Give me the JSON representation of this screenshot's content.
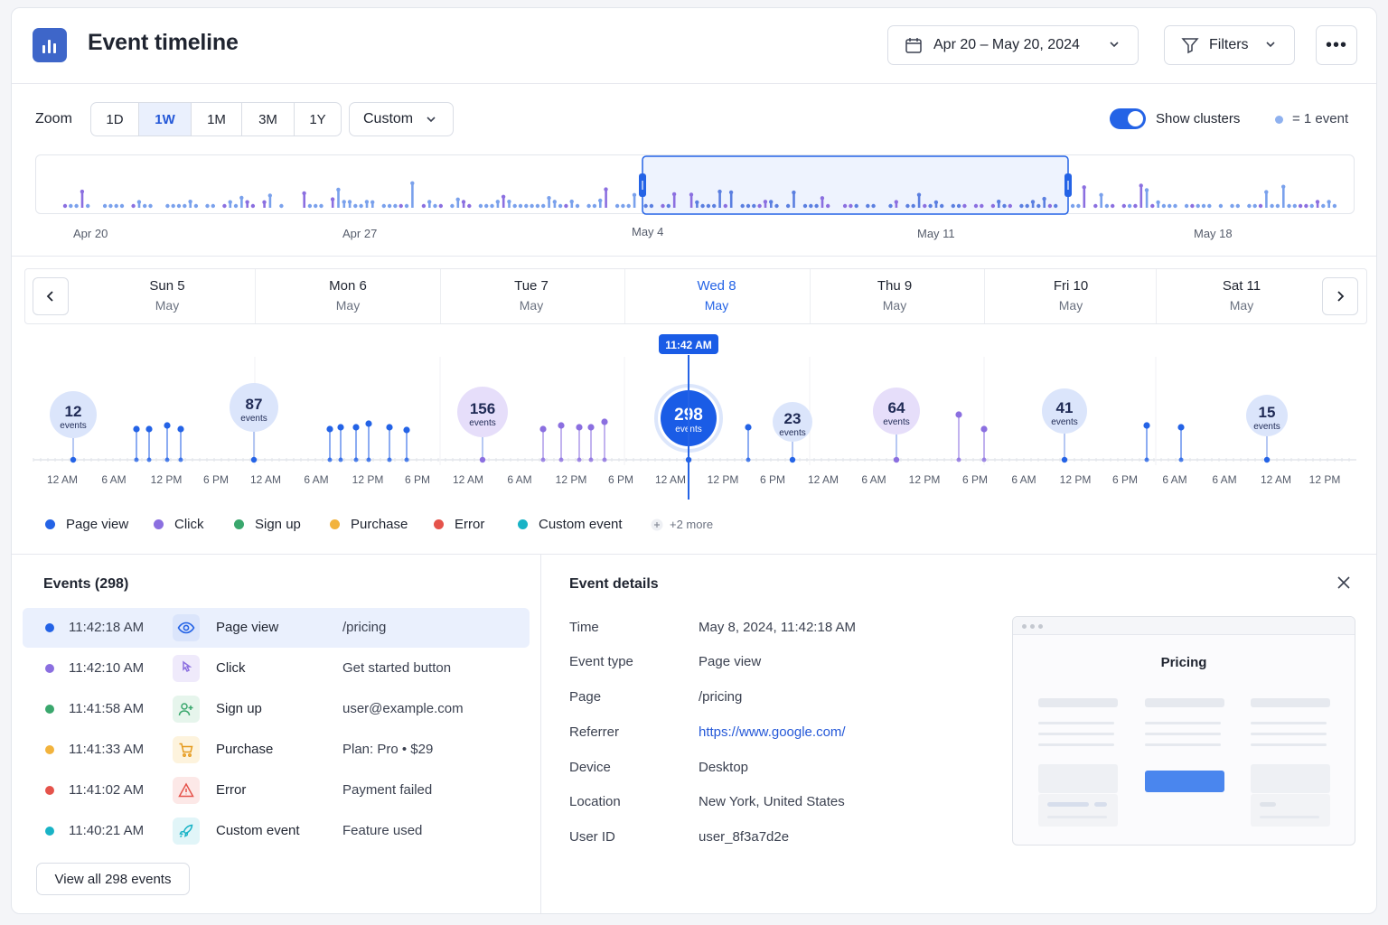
{
  "header": {
    "title": "Event timeline",
    "date_range": "Apr 20 – May 20, 2024",
    "filters_label": "Filters",
    "more_label": "•••"
  },
  "zoom": {
    "label": "Zoom",
    "options": [
      "1D",
      "1W",
      "1M",
      "3M",
      "1Y"
    ],
    "active": "1W",
    "custom_label": "Custom",
    "show_clusters_label": "Show clusters",
    "show_clusters_on": true,
    "event_key_label": "= 1 event"
  },
  "overview": {
    "axis_labels": [
      "Apr 20",
      "Apr 27",
      "May 4",
      "May 11",
      "May 18"
    ],
    "selection": "May 4 – May 11"
  },
  "days": [
    {
      "day": "Sun 5",
      "month": "May"
    },
    {
      "day": "Mon 6",
      "month": "May"
    },
    {
      "day": "Tue 7",
      "month": "May"
    },
    {
      "day": "Wed 8",
      "month": "May",
      "selected": true
    },
    {
      "day": "Thu 9",
      "month": "May"
    },
    {
      "day": "Fri 10",
      "month": "May"
    },
    {
      "day": "Sat 11",
      "month": "May"
    }
  ],
  "timeline": {
    "cursor_time": "11:42 AM",
    "tick_labels": [
      "12 AM",
      "6 AM",
      "12 PM",
      "6 PM",
      "12 AM",
      "6 AM",
      "12 PM",
      "6 PM",
      "12 AM",
      "6 AM",
      "12 PM",
      "6 PM",
      "12 AM",
      "12 PM",
      "6 PM",
      "12 AM",
      "6 AM",
      "12 PM",
      "6 PM",
      "6 AM",
      "12 PM",
      "6 PM",
      "6 AM",
      "6 AM",
      "12 AM",
      "12 PM",
      "6 PM"
    ],
    "clusters": [
      {
        "count": "12",
        "label": "events"
      },
      {
        "count": "87",
        "label": "events"
      },
      {
        "count": "156",
        "label": "events"
      },
      {
        "count": "298",
        "label": "events",
        "selected": true
      },
      {
        "count": "23",
        "label": "events"
      },
      {
        "count": "64",
        "label": "events"
      },
      {
        "count": "41",
        "label": "events"
      },
      {
        "count": "15",
        "label": "events"
      }
    ]
  },
  "legend": [
    {
      "label": "Page view",
      "color": "#2463e6"
    },
    {
      "label": "Click",
      "color": "#8b6fe0"
    },
    {
      "label": "Sign up",
      "color": "#3aa76d"
    },
    {
      "label": "Purchase",
      "color": "#f2b33d"
    },
    {
      "label": "Error",
      "color": "#e5534b"
    },
    {
      "label": "Custom event",
      "color": "#19b3c6"
    }
  ],
  "legend_more": "+2 more",
  "events": {
    "title": "Events (298)",
    "rows": [
      {
        "time": "11:42:18 AM",
        "type": "Page view",
        "detail": "/pricing",
        "color": "#2463e6",
        "icon": "eye-icon"
      },
      {
        "time": "11:42:10 AM",
        "type": "Click",
        "detail": "Get started button",
        "color": "#8b6fe0",
        "icon": "click-icon"
      },
      {
        "time": "11:41:58 AM",
        "type": "Sign up",
        "detail": "user@example.com",
        "color": "#3aa76d",
        "icon": "user-plus-icon"
      },
      {
        "time": "11:41:33 AM",
        "type": "Purchase",
        "detail": "Plan: Pro  •  $29",
        "color": "#f2b33d",
        "icon": "cart-icon"
      },
      {
        "time": "11:41:02 AM",
        "type": "Error",
        "detail": "Payment failed",
        "color": "#e5534b",
        "icon": "warning-icon"
      },
      {
        "time": "11:40:21 AM",
        "type": "Custom event",
        "detail": "Feature used",
        "color": "#19b3c6",
        "icon": "rocket-icon"
      }
    ],
    "view_all_label": "View all 298 events"
  },
  "details": {
    "title": "Event details",
    "fields": [
      {
        "key": "Time",
        "value": "May 8, 2024, 11:42:18 AM"
      },
      {
        "key": "Event type",
        "value": "Page view"
      },
      {
        "key": "Page",
        "value": "/pricing"
      },
      {
        "key": "Referrer",
        "value": "https://www.google.com/",
        "link": true
      },
      {
        "key": "Device",
        "value": "Desktop"
      },
      {
        "key": "Location",
        "value": "New York, United States"
      },
      {
        "key": "User ID",
        "value": "user_8f3a7d2e"
      }
    ],
    "preview_title": "Pricing"
  }
}
